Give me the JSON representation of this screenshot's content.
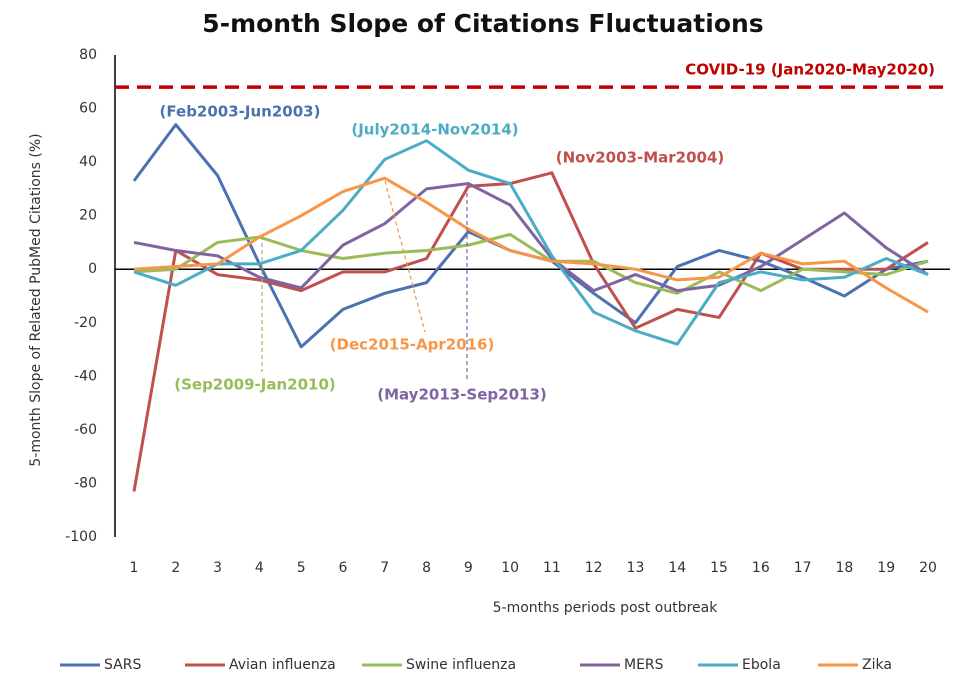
{
  "chart_data": {
    "type": "line",
    "title": "5-month Slope of Citations Fluctuations",
    "x_label": "5-months periods post outbreak",
    "y_label": "5-month Slope of Related PubMed Citations (%)",
    "categories": [
      "1",
      "2",
      "3",
      "4",
      "5",
      "6",
      "7",
      "8",
      "9",
      "10",
      "11",
      "12",
      "13",
      "14",
      "15",
      "16",
      "17",
      "18",
      "19",
      "20"
    ],
    "ylim": [
      -100,
      80
    ],
    "yticks": [
      -100,
      -80,
      -60,
      -40,
      -20,
      0,
      20,
      40,
      60,
      80
    ],
    "grid": false,
    "legend": "bottom",
    "series": [
      {
        "name": "SARS",
        "color": "#4a72b0",
        "values": [
          33,
          54,
          35,
          2,
          -29,
          -15,
          -9,
          -5,
          14,
          7,
          3,
          -9,
          -20,
          1,
          7,
          3,
          -3,
          -10,
          0,
          3
        ]
      },
      {
        "name": "Avian influenza",
        "color": "#c0504d",
        "values": [
          -83,
          7,
          -2,
          -4,
          -8,
          -1,
          -1,
          4,
          31,
          32,
          36,
          2,
          -22,
          -15,
          -18,
          6,
          0,
          0,
          0,
          10
        ]
      },
      {
        "name": "Swine influenza",
        "color": "#9bbb59",
        "values": [
          -1,
          0,
          10,
          12,
          7,
          4,
          6,
          7,
          9,
          13,
          3,
          3,
          -5,
          -9,
          -1,
          -8,
          0,
          -1,
          -2,
          3
        ]
      },
      {
        "name": "MERS",
        "color": "#8064a2",
        "values": [
          10,
          7,
          5,
          -3,
          -7,
          9,
          17,
          30,
          32,
          24,
          4,
          -8,
          -2,
          -8,
          -6,
          1,
          11,
          21,
          8,
          -2
        ]
      },
      {
        "name": "Ebola",
        "color": "#4bacc6",
        "values": [
          -1,
          -6,
          2,
          2,
          7,
          22,
          41,
          48,
          37,
          32,
          5,
          -16,
          -23,
          -28,
          -5,
          -1,
          -4,
          -3,
          4,
          -2
        ]
      },
      {
        "name": "Zika",
        "color": "#f79646",
        "values": [
          0,
          1,
          2,
          12,
          20,
          29,
          34,
          25,
          15,
          7,
          3,
          2,
          0,
          -4,
          -3,
          6,
          2,
          3,
          -7,
          -16
        ]
      }
    ],
    "reference_line": {
      "value": 68,
      "label": "COVID-19 (Jan2020-May2020)",
      "color": "#c00000"
    },
    "annotations": [
      {
        "text": "(Feb2003-Jun2003)",
        "color": "#4a72b0"
      },
      {
        "text": "(July2014-Nov2014)",
        "color": "#4bacc6"
      },
      {
        "text": "(Nov2003-Mar2004)",
        "color": "#c0504d"
      },
      {
        "text": "(Dec2015-Apr2016)",
        "color": "#f79646"
      },
      {
        "text": "(Sep2009-Jan2010)",
        "color": "#9bbb59"
      },
      {
        "text": "(May2013-Sep2013)",
        "color": "#8064a2"
      }
    ]
  }
}
